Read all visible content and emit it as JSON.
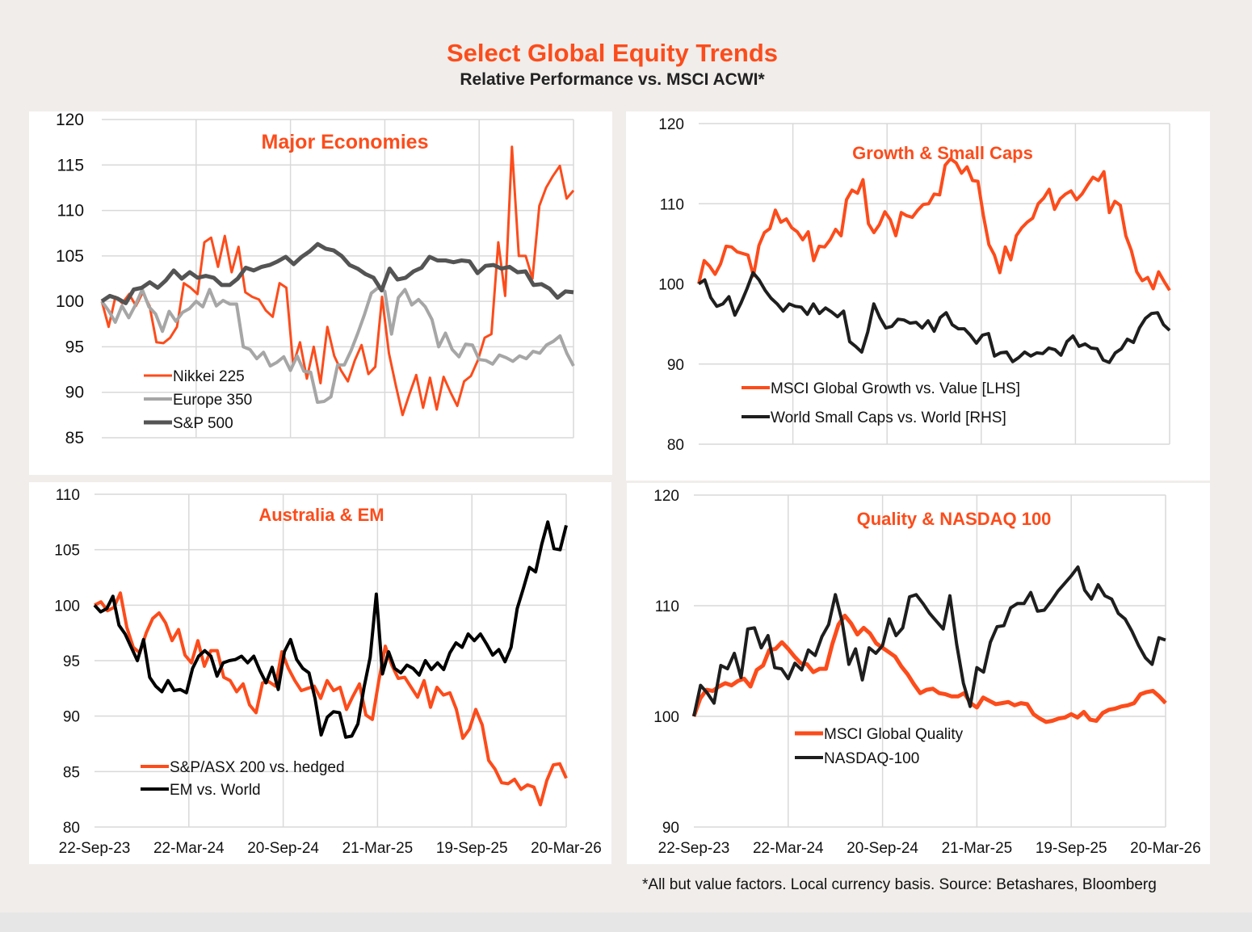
{
  "header": {
    "title": "Select Global Equity Trends",
    "subtitle": "Relative Performance vs. MSCI ACWI*"
  },
  "footnote": "*All but value factors. Local currency basis.  Source: Betashares, Bloomberg",
  "colors": {
    "orange": "#fc4c1b",
    "grey": "#a6a6a6",
    "darkgrey": "#545454",
    "black": "#1e1e1e"
  },
  "chart_data": [
    {
      "type": "line",
      "title": "Major Economies",
      "x_tick_labels": [],
      "x_ticks_count": 6,
      "ylim": [
        85,
        120
      ],
      "y_ticks": [
        85,
        90,
        95,
        100,
        105,
        110,
        115,
        120
      ],
      "grid": true,
      "legend": "bottom-left",
      "series": [
        {
          "name": "Nikkei 225",
          "color": "#fc4c1b",
          "values": [
            100,
            97.2,
            100.5,
            99.8,
            100.8,
            99.5,
            101,
            99.5,
            95.5,
            95.4,
            96,
            97.2,
            102,
            101.5,
            100.8,
            106.5,
            107,
            103.8,
            107.2,
            103.2,
            106,
            101,
            100.5,
            100.2,
            99,
            98.3,
            102,
            101.5,
            93,
            95.5,
            91.5,
            95,
            91,
            97.2,
            94,
            92.4,
            91.2,
            93.5,
            95.2,
            92,
            92.8,
            100.5,
            94.3,
            90.8,
            87.5,
            89.8,
            91.9,
            88.3,
            91.6,
            88.1,
            91.7,
            90,
            88.5,
            91.2,
            91.8,
            93.5,
            96,
            96.4,
            106.5,
            100.6,
            117,
            105,
            105,
            102.5,
            110.5,
            112.5,
            113.8,
            114.9,
            111.3,
            112.2
          ]
        },
        {
          "name": "Europe 350",
          "color": "#a6a6a6",
          "values": [
            100,
            99,
            97.7,
            99.5,
            98.2,
            99.6,
            101.3,
            99.4,
            98.6,
            96.7,
            98.9,
            97.8,
            98.8,
            99.2,
            100,
            99.4,
            101.3,
            99.5,
            100.1,
            99.7,
            99.7,
            95,
            94.7,
            93.7,
            94.4,
            92.9,
            93.3,
            93.9,
            92.4,
            94,
            92.3,
            92.2,
            88.9,
            89,
            89.5,
            93,
            93,
            94.6,
            96.5,
            98.6,
            100.9,
            101.5,
            101.1,
            96.4,
            100.4,
            101.3,
            99.6,
            100.2,
            99.4,
            98,
            95,
            96.5,
            94.7,
            93.9,
            95.3,
            95.2,
            93.6,
            93.5,
            93.1,
            94.1,
            93.8,
            93.4,
            94,
            93.7,
            94.5,
            94.3,
            95.2,
            95.6,
            96.2,
            94.3,
            92.9
          ]
        },
        {
          "name": "S&P 500",
          "color": "#545454",
          "values": [
            100,
            100.6,
            100.3,
            99.8,
            101.3,
            101.5,
            102.1,
            101.5,
            102.3,
            103.4,
            102.5,
            103.2,
            102.6,
            102.8,
            102.6,
            101.8,
            101.8,
            102.5,
            103.7,
            103.4,
            103.8,
            104,
            104.4,
            104.9,
            104.1,
            104.9,
            105.5,
            106.3,
            105.8,
            105.6,
            105,
            104,
            103.6,
            103,
            102.6,
            101.2,
            103.6,
            102.4,
            102.6,
            103.3,
            103.7,
            104.9,
            104.5,
            104.5,
            104.3,
            104.5,
            104.4,
            103.1,
            103.9,
            104,
            103.6,
            103.8,
            103.2,
            103.3,
            101.8,
            101.9,
            101.4,
            100.4,
            101.1,
            101
          ]
        }
      ]
    },
    {
      "type": "line",
      "title": "Growth & Small Caps",
      "ylim": [
        80,
        120
      ],
      "y_ticks": [
        80,
        90,
        100,
        110,
        120
      ],
      "grid": true,
      "legend": "bottom-left",
      "series": [
        {
          "name": "MSCI Global Growth vs. Value [LHS]",
          "color": "#fc4c1b",
          "values": [
            100,
            102.9,
            102.2,
            101.2,
            102.5,
            104.7,
            104.6,
            104,
            103.8,
            103.6,
            101,
            104.8,
            106.4,
            106.9,
            109.2,
            107.7,
            108.1,
            107,
            106.5,
            105.5,
            106.5,
            102.9,
            104.7,
            104.6,
            105.5,
            106.8,
            106,
            110.5,
            111.7,
            111.3,
            113,
            107.5,
            106.4,
            107.4,
            109,
            108,
            106,
            108.9,
            108.5,
            108.3,
            109.2,
            109.9,
            110,
            111.2,
            111.1,
            114.8,
            115.6,
            115.1,
            113.8,
            114.6,
            112.9,
            112.8,
            108.5,
            104.9,
            103.6,
            101.4,
            104.6,
            103,
            106,
            107,
            107.7,
            108.2,
            110,
            110.7,
            111.8,
            109.3,
            110.6,
            111.2,
            111.6,
            110.5,
            111.2,
            112.3,
            113.3,
            112.9,
            114,
            108.9,
            110.3,
            109.8,
            106,
            104.2,
            101.5,
            100.4,
            100.8,
            99.4,
            101.5,
            100.3,
            99.2
          ]
        },
        {
          "name": "World Small Caps vs. World [RHS]",
          "color": "#1e1e1e",
          "values": [
            100,
            100.5,
            98.3,
            97.2,
            97.5,
            98.4,
            96.1,
            97.6,
            99.4,
            101.4,
            100.5,
            99.2,
            98.2,
            97.5,
            96.6,
            97.5,
            97.2,
            97.1,
            96.2,
            97.5,
            96.3,
            97,
            96.5,
            95.9,
            96.6,
            92.8,
            92.2,
            91.5,
            94,
            97.5,
            95.8,
            94.5,
            94.7,
            95.6,
            95.5,
            95.1,
            95.2,
            94.5,
            95.4,
            94.1,
            95.8,
            96.4,
            94.9,
            94.4,
            94.4,
            93.6,
            92.6,
            93.6,
            93.8,
            91,
            91.4,
            91.5,
            90.3,
            90.8,
            91.5,
            91,
            91.4,
            91.3,
            92,
            91.8,
            91.1,
            92.8,
            93.5,
            92.2,
            92.5,
            92,
            91.9,
            90.5,
            90.2,
            91.4,
            91.9,
            93.1,
            92.7,
            94.5,
            95.7,
            96.3,
            96.4,
            94.9,
            94.2
          ]
        }
      ]
    },
    {
      "type": "line",
      "title": "Australia & EM",
      "x_tick_labels": [
        "22-Sep-23",
        "22-Mar-24",
        "20-Sep-24",
        "21-Mar-25",
        "19-Sep-25",
        "20-Mar-26"
      ],
      "ylim": [
        80,
        110
      ],
      "y_ticks": [
        80,
        85,
        90,
        95,
        100,
        105,
        110
      ],
      "grid": true,
      "legend": "bottom-left",
      "series": [
        {
          "name": "S&P/ASX 200 vs. hedged",
          "color": "#fc4c1b",
          "values": [
            100,
            100.3,
            99.5,
            99.8,
            101.1,
            98,
            96.2,
            95.7,
            97.5,
            98.8,
            99.3,
            98.4,
            96.8,
            97.8,
            95.5,
            94.8,
            96.8,
            94.5,
            95.9,
            95.9,
            93.5,
            93.2,
            92.2,
            92.9,
            91,
            90.3,
            93,
            93.1,
            92.7,
            95.8,
            94.3,
            93.2,
            92.3,
            92.5,
            92.7,
            91.6,
            93.2,
            92.3,
            92.6,
            90.6,
            91.8,
            92.9,
            90.1,
            89.7,
            93.2,
            96.3,
            94.6,
            93.4,
            93.5,
            92.6,
            91.7,
            93.2,
            90.8,
            92.6,
            91.9,
            92.1,
            90.6,
            88,
            88.8,
            90.6,
            89.2,
            86,
            85.2,
            84,
            83.9,
            84.3,
            83.4,
            83.8,
            83.6,
            82,
            84.2,
            85.6,
            85.7,
            84.4
          ]
        },
        {
          "name": "EM vs. World",
          "color": "#000000",
          "values": [
            100,
            99.4,
            99.7,
            100.8,
            98.2,
            97.4,
            96.2,
            95,
            96.9,
            93.5,
            92.7,
            92.2,
            93.2,
            92.3,
            92.4,
            92.1,
            94.3,
            95.4,
            95.9,
            95.4,
            93.6,
            94.8,
            95,
            95.1,
            95.4,
            94.8,
            95.4,
            94.1,
            93,
            94.4,
            92.4,
            95.8,
            96.9,
            95.1,
            94.3,
            93.9,
            91.6,
            88.3,
            89.9,
            90.4,
            90.3,
            88.1,
            88.2,
            89.3,
            92.6,
            95.3,
            101,
            93.8,
            95.8,
            94.3,
            93.9,
            94.6,
            94.3,
            93.7,
            95,
            94.2,
            94.8,
            94.2,
            95.7,
            96.6,
            96.2,
            97.4,
            96.8,
            97.4,
            96.5,
            95.5,
            96,
            94.9,
            96.2,
            99.7,
            101.5,
            103.4,
            103,
            105.5,
            107.5,
            105.1,
            105,
            107.2
          ]
        }
      ]
    },
    {
      "type": "line",
      "title": "Quality & NASDAQ 100",
      "x_tick_labels": [
        "22-Sep-23",
        "22-Mar-24",
        "20-Sep-24",
        "21-Mar-25",
        "19-Sep-25",
        "20-Mar-26"
      ],
      "ylim": [
        90,
        120
      ],
      "y_ticks": [
        90,
        100,
        110,
        120
      ],
      "grid": true,
      "legend": "bottom-left",
      "series": [
        {
          "name": "MSCI Global Quality",
          "color": "#fc4c1b",
          "values": [
            100,
            101.6,
            102.4,
            102.3,
            102.7,
            103,
            102.8,
            103.2,
            103.4,
            102.7,
            104.2,
            104.6,
            106,
            106.1,
            106.7,
            106.1,
            105.4,
            104.8,
            104.7,
            104,
            104.3,
            104.3,
            106.5,
            108.3,
            109.1,
            108.4,
            107.4,
            108,
            107.5,
            106.6,
            106.2,
            105.8,
            105.4,
            104.5,
            103.8,
            102.9,
            102.1,
            102.4,
            102.5,
            102.1,
            102,
            101.8,
            101.8,
            102.1,
            101.2,
            100.8,
            101.7,
            101.4,
            101.1,
            101.2,
            101.3,
            101,
            101.2,
            101.1,
            100.2,
            99.8,
            99.5,
            99.6,
            99.8,
            99.9,
            100.2,
            99.9,
            100.4,
            99.7,
            99.6,
            100.3,
            100.6,
            100.7,
            100.9,
            101,
            101.2,
            102,
            102.2,
            102.3,
            101.8,
            101.2
          ]
        },
        {
          "name": "NASDAQ-100",
          "color": "#1e1e1e",
          "values": [
            100,
            102.8,
            102.1,
            101.2,
            104.6,
            104.3,
            105.7,
            103.5,
            107.9,
            108,
            106.2,
            107.3,
            104.4,
            104.3,
            103.4,
            104.8,
            104.2,
            106,
            105.5,
            107.2,
            108.3,
            111,
            108.6,
            104.7,
            106.1,
            103.3,
            106.2,
            105.7,
            106.4,
            108.8,
            107.3,
            108,
            110.8,
            111,
            110.2,
            109.3,
            108.6,
            107.9,
            110.9,
            106.5,
            103,
            100.9,
            104.4,
            104,
            106.7,
            108.1,
            108.2,
            109.8,
            110.2,
            110.2,
            111.2,
            109.5,
            109.6,
            110.4,
            111.3,
            112,
            112.7,
            113.5,
            111.4,
            110.6,
            111.9,
            110.9,
            110.6,
            109.3,
            108.8,
            107.7,
            106.4,
            105.3,
            104.7,
            107.1,
            106.9
          ]
        }
      ]
    }
  ]
}
